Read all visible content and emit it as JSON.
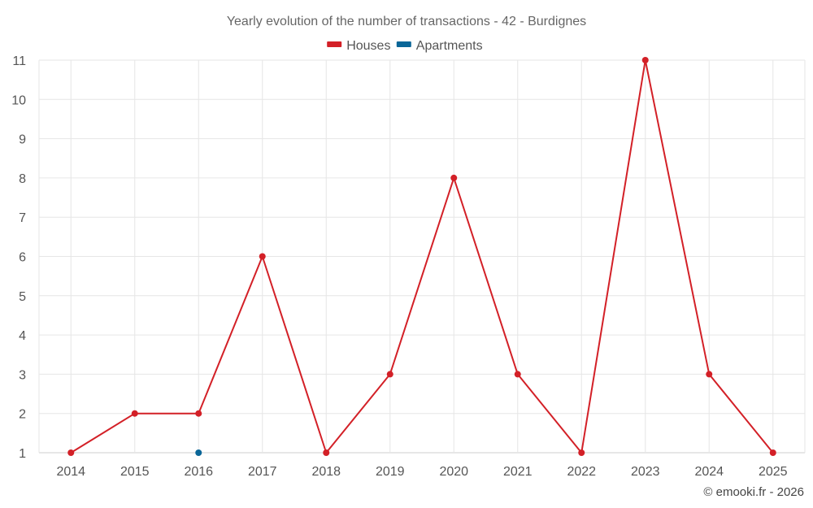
{
  "chart_data": {
    "type": "line",
    "title": "Yearly evolution of the number of transactions - 42 - Burdignes",
    "categories": [
      "2014",
      "2015",
      "2016",
      "2017",
      "2018",
      "2019",
      "2020",
      "2021",
      "2022",
      "2023",
      "2024",
      "2025"
    ],
    "series": [
      {
        "name": "Houses",
        "color": "#d32027",
        "values": [
          1,
          2,
          2,
          6,
          1,
          3,
          8,
          3,
          1,
          11,
          3,
          1
        ]
      },
      {
        "name": "Apartments",
        "color": "#0a6698",
        "values": [
          null,
          null,
          1,
          null,
          null,
          null,
          null,
          null,
          null,
          null,
          null,
          null
        ]
      }
    ],
    "ylim": [
      1,
      11
    ],
    "yticks": [
      1,
      2,
      3,
      4,
      5,
      6,
      7,
      8,
      9,
      10,
      11
    ],
    "grid": true,
    "legend": "top-center"
  },
  "credit": "© emooki.fr - 2026"
}
